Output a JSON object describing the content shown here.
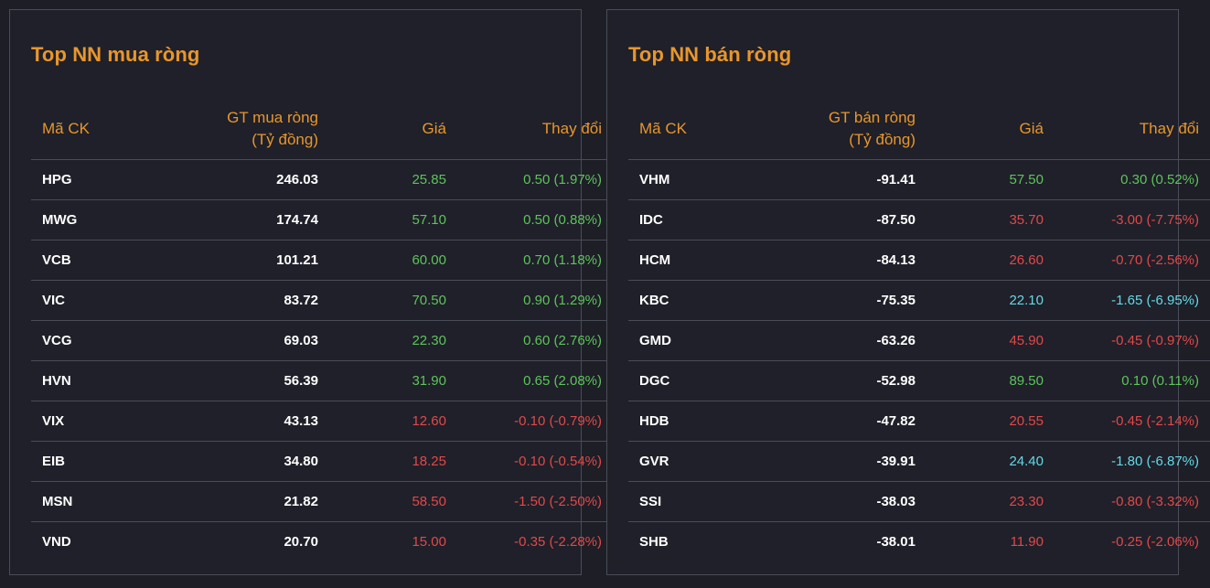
{
  "buy_panel": {
    "title": "Top NN mua ròng",
    "headers": {
      "symbol": "Mã CK",
      "value": "GT mua ròng\n(Tỷ đồng)",
      "price": "Giá",
      "change": "Thay đổi"
    },
    "rows": [
      {
        "symbol": "HPG",
        "value": "246.03",
        "price": "25.85",
        "change": "0.50 (1.97%)",
        "status": "up"
      },
      {
        "symbol": "MWG",
        "value": "174.74",
        "price": "57.10",
        "change": "0.50 (0.88%)",
        "status": "up"
      },
      {
        "symbol": "VCB",
        "value": "101.21",
        "price": "60.00",
        "change": "0.70 (1.18%)",
        "status": "up"
      },
      {
        "symbol": "VIC",
        "value": "83.72",
        "price": "70.50",
        "change": "0.90 (1.29%)",
        "status": "up"
      },
      {
        "symbol": "VCG",
        "value": "69.03",
        "price": "22.30",
        "change": "0.60 (2.76%)",
        "status": "up"
      },
      {
        "symbol": "HVN",
        "value": "56.39",
        "price": "31.90",
        "change": "0.65 (2.08%)",
        "status": "up"
      },
      {
        "symbol": "VIX",
        "value": "43.13",
        "price": "12.60",
        "change": "-0.10 (-0.79%)",
        "status": "down"
      },
      {
        "symbol": "EIB",
        "value": "34.80",
        "price": "18.25",
        "change": "-0.10 (-0.54%)",
        "status": "down"
      },
      {
        "symbol": "MSN",
        "value": "21.82",
        "price": "58.50",
        "change": "-1.50 (-2.50%)",
        "status": "down"
      },
      {
        "symbol": "VND",
        "value": "20.70",
        "price": "15.00",
        "change": "-0.35 (-2.28%)",
        "status": "down"
      }
    ]
  },
  "sell_panel": {
    "title": "Top NN bán ròng",
    "headers": {
      "symbol": "Mã CK",
      "value": "GT bán ròng\n(Tỷ đồng)",
      "price": "Giá",
      "change": "Thay đổi"
    },
    "rows": [
      {
        "symbol": "VHM",
        "value": "-91.41",
        "price": "57.50",
        "change": "0.30 (0.52%)",
        "status": "up"
      },
      {
        "symbol": "IDC",
        "value": "-87.50",
        "price": "35.70",
        "change": "-3.00 (-7.75%)",
        "status": "down"
      },
      {
        "symbol": "HCM",
        "value": "-84.13",
        "price": "26.60",
        "change": "-0.70 (-2.56%)",
        "status": "down"
      },
      {
        "symbol": "KBC",
        "value": "-75.35",
        "price": "22.10",
        "change": "-1.65 (-6.95%)",
        "status": "floor"
      },
      {
        "symbol": "GMD",
        "value": "-63.26",
        "price": "45.90",
        "change": "-0.45 (-0.97%)",
        "status": "down"
      },
      {
        "symbol": "DGC",
        "value": "-52.98",
        "price": "89.50",
        "change": "0.10 (0.11%)",
        "status": "up"
      },
      {
        "symbol": "HDB",
        "value": "-47.82",
        "price": "20.55",
        "change": "-0.45 (-2.14%)",
        "status": "down"
      },
      {
        "symbol": "GVR",
        "value": "-39.91",
        "price": "24.40",
        "change": "-1.80 (-6.87%)",
        "status": "floor"
      },
      {
        "symbol": "SSI",
        "value": "-38.03",
        "price": "23.30",
        "change": "-0.80 (-3.32%)",
        "status": "down"
      },
      {
        "symbol": "SHB",
        "value": "-38.01",
        "price": "11.90",
        "change": "-0.25 (-2.06%)",
        "status": "down"
      }
    ]
  },
  "colors": {
    "accent": "#e8962c",
    "up": "#5ec35c",
    "down": "#e2484a",
    "floor": "#64d8e6",
    "background": "#1d1e26",
    "border": "#4a4c57"
  }
}
